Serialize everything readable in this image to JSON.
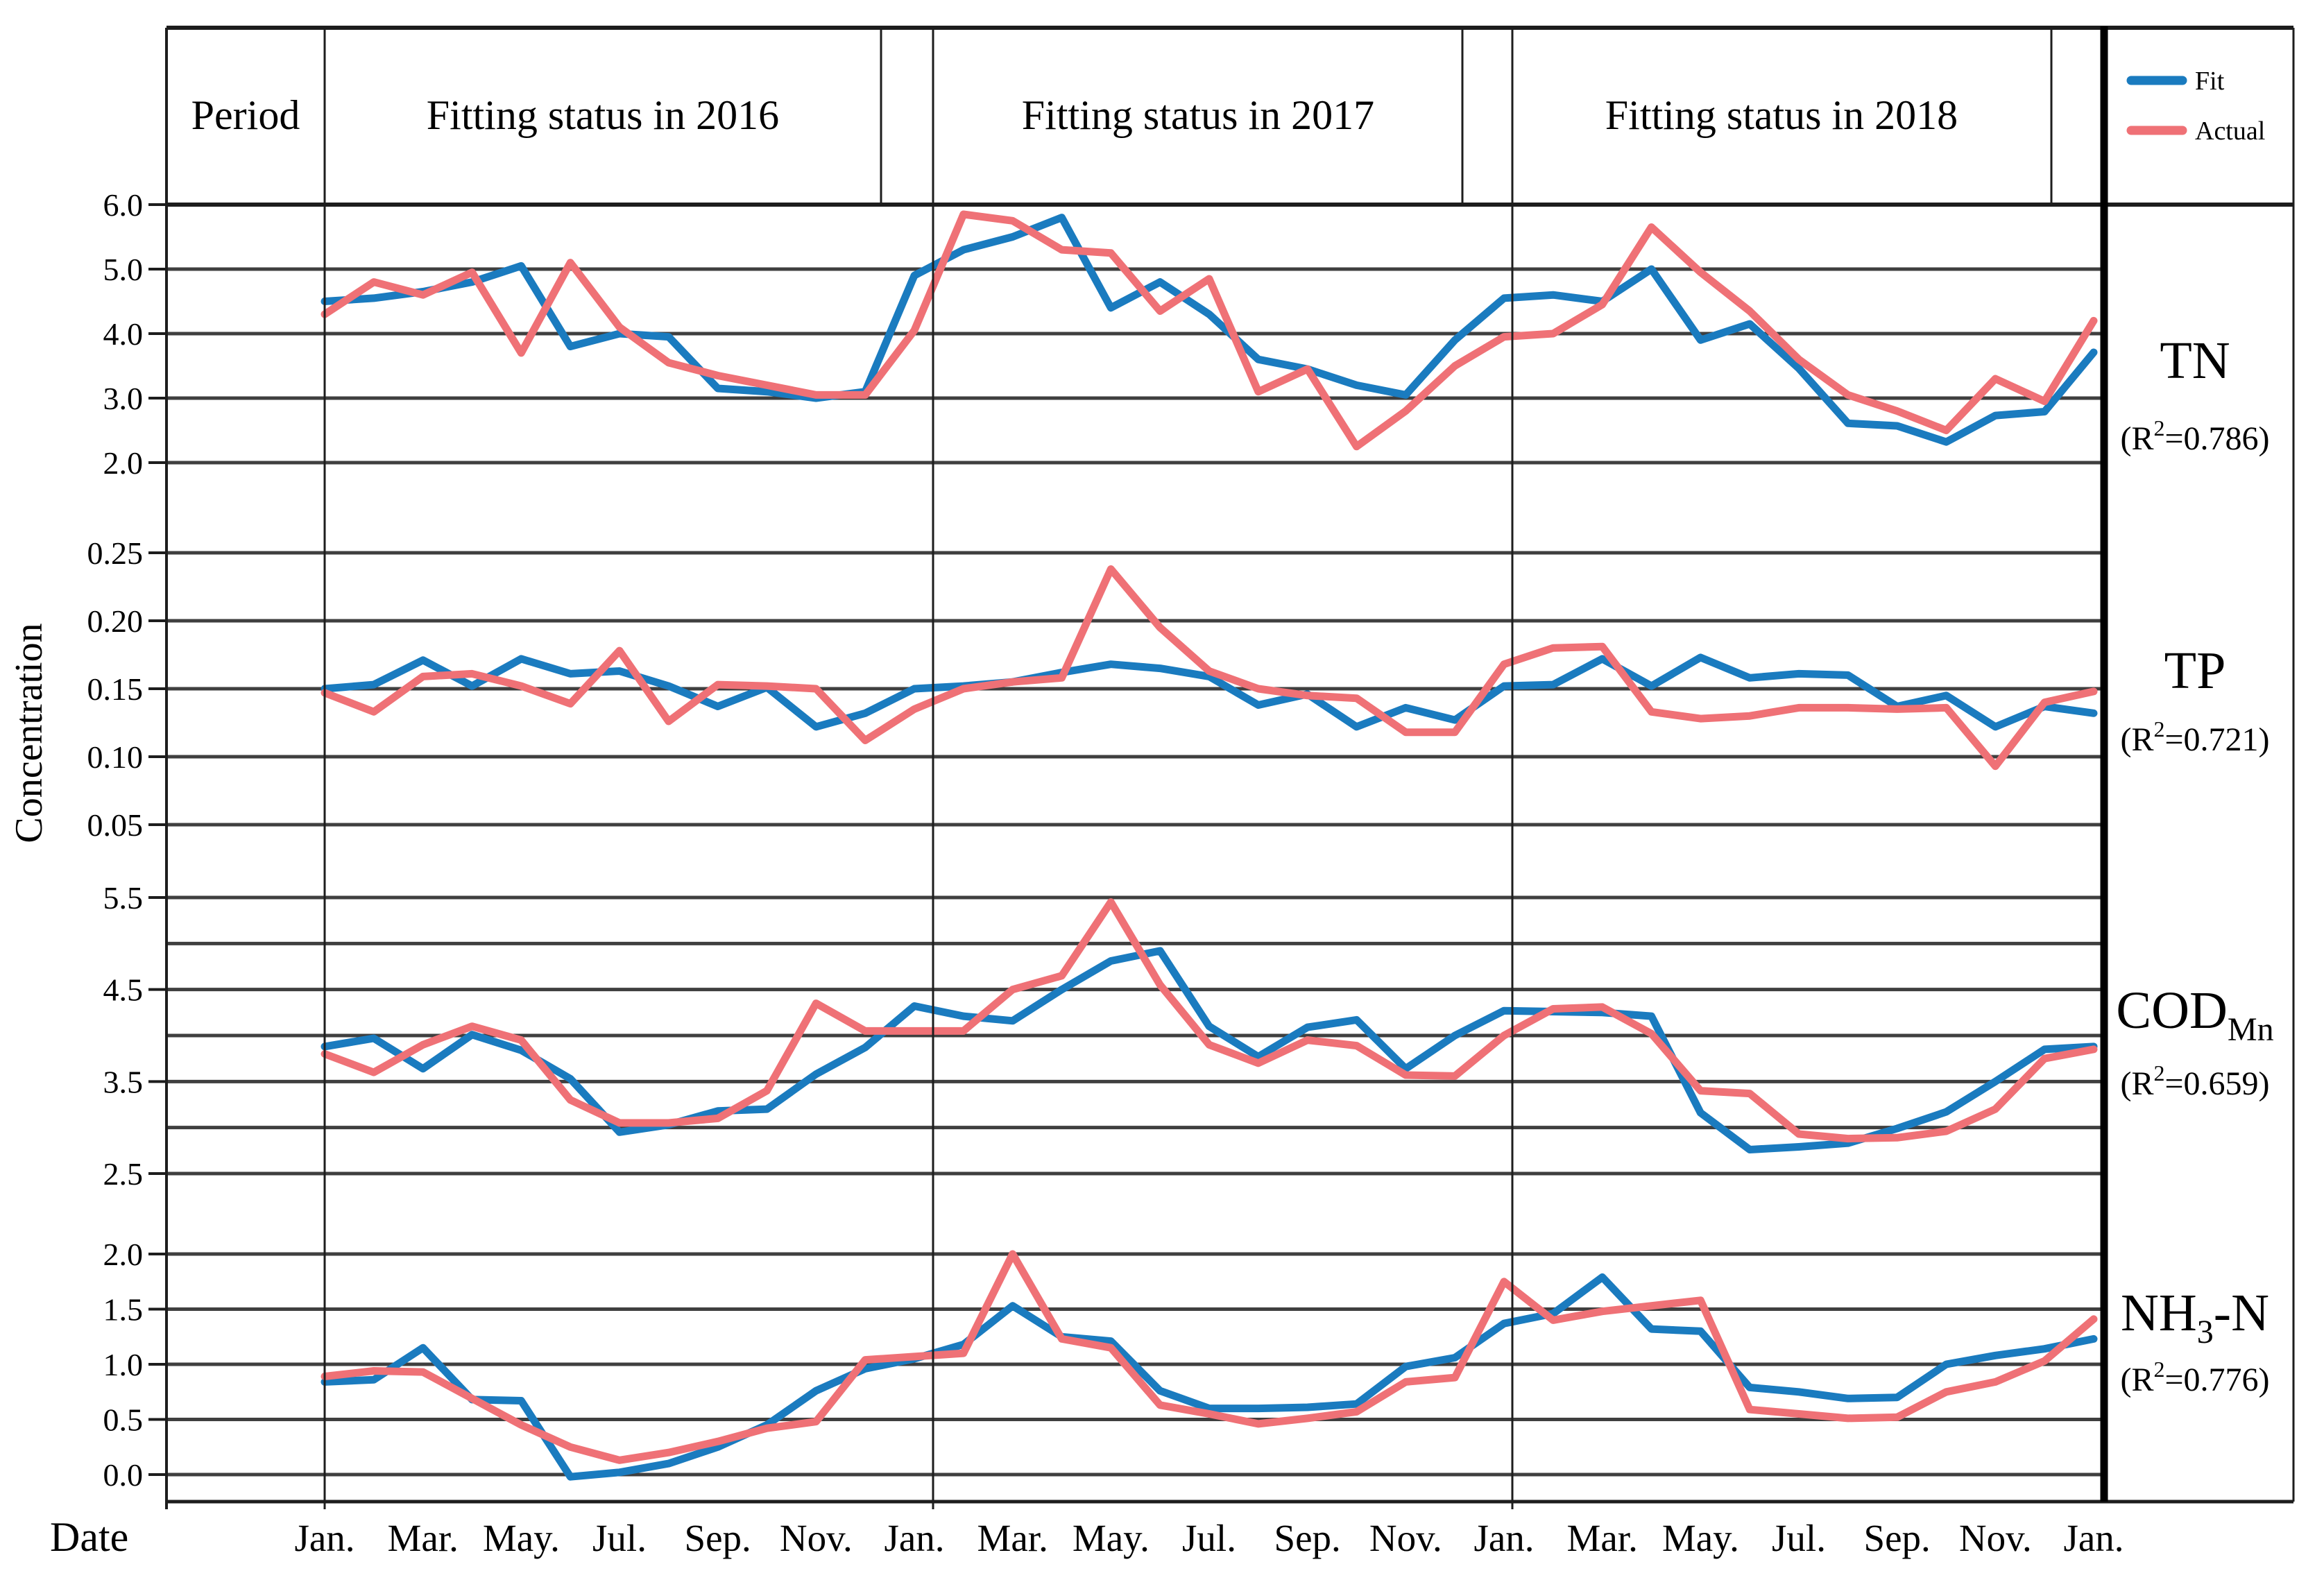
{
  "colors": {
    "fit": "#1a7bbf",
    "actual": "#ef7176",
    "grid": "#3f3f3f",
    "border": "#1d1d1d",
    "separator_thick": "#000000",
    "background": "#ffffff"
  },
  "header": {
    "period": "Period",
    "cells": [
      "Fitting status in 2016",
      "Fitting status in 2017",
      "Fitting status in 2018"
    ]
  },
  "legend": {
    "position": "top-right",
    "items": [
      {
        "label": "Fit",
        "color_key": "fit"
      },
      {
        "label": "Actual",
        "color_key": "actual"
      }
    ]
  },
  "axes": {
    "y_title": "Concentration",
    "x_title": "Date",
    "x_tick_labels": [
      "Jan.",
      "Mar.",
      "May.",
      "Jul.",
      "Sep.",
      "Nov.",
      "Jan.",
      "Mar.",
      "May.",
      "Jul.",
      "Sep.",
      "Nov.",
      "Jan.",
      "Mar.",
      "May.",
      "Jul.",
      "Sep.",
      "Nov.",
      "Jan."
    ]
  },
  "chart_data": {
    "type": "line",
    "x_description": "Monthly values, Jan 2016 through Jan 2019 (37 points per series)",
    "x_points": 37,
    "grid": true,
    "panels": [
      {
        "id": "TN",
        "label": {
          "main": "TN",
          "sub": "",
          "suffix": ""
        },
        "r2": "0.786",
        "ylim": [
          2.0,
          6.0
        ],
        "gridlines": [
          {
            "v": 6.0,
            "label": "6.0"
          },
          {
            "v": 5.0,
            "label": "5.0"
          },
          {
            "v": 4.0,
            "label": "4.0"
          },
          {
            "v": 3.0,
            "label": "3.0"
          },
          {
            "v": 2.0,
            "label": "2.0"
          }
        ],
        "series": [
          {
            "name": "Fit",
            "color_key": "fit",
            "values": [
              4.5,
              4.55,
              4.65,
              4.8,
              5.05,
              3.8,
              4.0,
              3.95,
              3.15,
              3.1,
              3.0,
              3.1,
              4.9,
              5.3,
              5.5,
              5.8,
              4.4,
              4.8,
              4.3,
              3.6,
              3.45,
              3.2,
              3.05,
              3.9,
              4.55,
              4.6,
              4.5,
              5.0,
              3.9,
              4.15,
              3.46,
              2.61,
              2.57,
              2.32,
              2.73,
              2.79,
              3.71
            ]
          },
          {
            "name": "Actual",
            "color_key": "actual",
            "values": [
              4.3,
              4.8,
              4.6,
              4.95,
              3.7,
              5.1,
              4.1,
              3.55,
              3.35,
              3.2,
              3.05,
              3.05,
              4.05,
              5.85,
              5.75,
              5.3,
              5.25,
              4.35,
              4.85,
              3.1,
              3.45,
              2.25,
              2.8,
              3.5,
              3.95,
              4.0,
              4.45,
              5.65,
              4.95,
              4.35,
              3.6,
              3.05,
              2.8,
              2.5,
              3.3,
              2.95,
              4.2
            ]
          }
        ]
      },
      {
        "id": "TP",
        "label": {
          "main": "TP",
          "sub": "",
          "suffix": ""
        },
        "r2": "0.721",
        "ylim": [
          0.05,
          0.25
        ],
        "gridlines": [
          {
            "v": 0.25,
            "label": "0.25"
          },
          {
            "v": 0.2,
            "label": "0.20"
          },
          {
            "v": 0.15,
            "label": "0.15"
          },
          {
            "v": 0.1,
            "label": "0.10"
          },
          {
            "v": 0.05,
            "label": "0.05"
          }
        ],
        "series": [
          {
            "name": "Fit",
            "color_key": "fit",
            "values": [
              0.15,
              0.153,
              0.171,
              0.152,
              0.172,
              0.161,
              0.163,
              0.152,
              0.137,
              0.151,
              0.122,
              0.132,
              0.15,
              0.152,
              0.155,
              0.162,
              0.168,
              0.165,
              0.159,
              0.138,
              0.146,
              0.122,
              0.136,
              0.127,
              0.152,
              0.153,
              0.172,
              0.152,
              0.173,
              0.158,
              0.161,
              0.16,
              0.137,
              0.145,
              0.122,
              0.137,
              0.132
            ]
          },
          {
            "name": "Actual",
            "color_key": "actual",
            "values": [
              0.147,
              0.133,
              0.159,
              0.161,
              0.152,
              0.139,
              0.178,
              0.126,
              0.153,
              0.152,
              0.15,
              0.112,
              0.135,
              0.15,
              0.155,
              0.158,
              0.238,
              0.195,
              0.163,
              0.15,
              0.145,
              0.143,
              0.118,
              0.118,
              0.168,
              0.18,
              0.181,
              0.133,
              0.128,
              0.13,
              0.136,
              0.136,
              0.135,
              0.136,
              0.093,
              0.14,
              0.148
            ]
          }
        ]
      },
      {
        "id": "CODMn",
        "label": {
          "main": "COD",
          "sub": "Mn",
          "suffix": ""
        },
        "r2": "0.659",
        "ylim": [
          2.5,
          5.5
        ],
        "gridlines": [
          {
            "v": 5.5,
            "label": "5.5"
          },
          {
            "v": 5.0,
            "label": null
          },
          {
            "v": 4.5,
            "label": "4.5"
          },
          {
            "v": 4.0,
            "label": null
          },
          {
            "v": 3.5,
            "label": "3.5"
          },
          {
            "v": 3.0,
            "label": null
          },
          {
            "v": 2.5,
            "label": "2.5"
          }
        ],
        "series": [
          {
            "name": "Fit",
            "color_key": "fit",
            "values": [
              3.88,
              3.97,
              3.64,
              4.01,
              3.84,
              3.53,
              2.95,
              3.03,
              3.18,
              3.2,
              3.58,
              3.87,
              4.32,
              4.21,
              4.16,
              4.5,
              4.81,
              4.92,
              4.1,
              3.77,
              4.09,
              4.17,
              3.64,
              4.0,
              4.27,
              4.26,
              4.25,
              4.21,
              3.16,
              2.76,
              2.79,
              2.83,
              2.99,
              3.17,
              3.5,
              3.85,
              3.88
            ]
          },
          {
            "name": "Actual",
            "color_key": "actual",
            "values": [
              3.8,
              3.6,
              3.9,
              4.1,
              3.95,
              3.3,
              3.05,
              3.05,
              3.1,
              3.4,
              4.35,
              4.05,
              4.05,
              4.05,
              4.5,
              4.65,
              5.45,
              4.55,
              3.9,
              3.7,
              3.95,
              3.89,
              3.57,
              3.56,
              4.0,
              4.29,
              4.31,
              4.02,
              3.4,
              3.37,
              2.93,
              2.88,
              2.89,
              2.96,
              3.2,
              3.75,
              3.85
            ]
          }
        ]
      },
      {
        "id": "NH3N",
        "label": {
          "main": "NH",
          "sub": "3",
          "suffix": "-N"
        },
        "r2": "0.776",
        "ylim": [
          0.0,
          2.0
        ],
        "gridlines": [
          {
            "v": 2.0,
            "label": "2.0"
          },
          {
            "v": 1.5,
            "label": "1.5"
          },
          {
            "v": 1.0,
            "label": "1.0"
          },
          {
            "v": 0.5,
            "label": "0.5"
          },
          {
            "v": 0.0,
            "label": "0.0"
          }
        ],
        "series": [
          {
            "name": "Fit",
            "color_key": "fit",
            "values": [
              0.84,
              0.86,
              1.15,
              0.68,
              0.67,
              -0.02,
              0.02,
              0.1,
              0.25,
              0.45,
              0.76,
              0.96,
              1.05,
              1.18,
              1.53,
              1.25,
              1.21,
              0.76,
              0.6,
              0.6,
              0.61,
              0.64,
              0.98,
              1.06,
              1.37,
              1.46,
              1.79,
              1.32,
              1.3,
              0.79,
              0.75,
              0.69,
              0.7,
              1.0,
              1.08,
              1.14,
              1.23
            ]
          },
          {
            "name": "Actual",
            "color_key": "actual",
            "values": [
              0.89,
              0.94,
              0.93,
              0.69,
              0.45,
              0.25,
              0.13,
              0.2,
              0.3,
              0.42,
              0.48,
              1.04,
              1.07,
              1.1,
              2.0,
              1.23,
              1.15,
              0.63,
              0.55,
              0.46,
              0.51,
              0.57,
              0.84,
              0.88,
              1.75,
              1.4,
              1.48,
              1.53,
              1.58,
              0.59,
              0.55,
              0.51,
              0.52,
              0.75,
              0.84,
              1.03,
              1.41
            ]
          }
        ]
      }
    ]
  }
}
